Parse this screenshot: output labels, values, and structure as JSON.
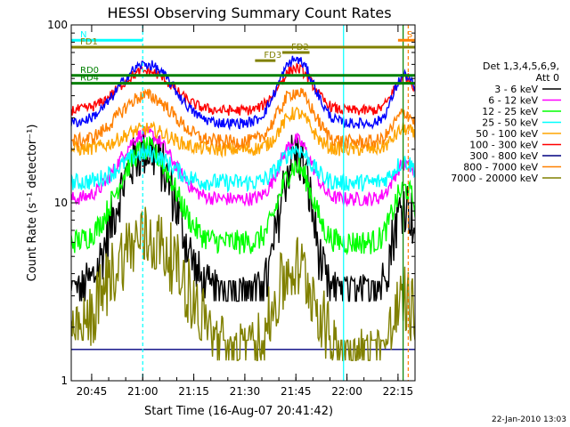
{
  "chart_data": {
    "type": "line",
    "title": "HESSI Observing Summary Count Rates",
    "xlabel": "Start Time (16-Aug-07 20:41:42)",
    "ylabel": "Count Rate (s⁻¹ detector⁻¹)",
    "yscale": "log",
    "ylim": [
      1,
      100
    ],
    "xlim_minutes": [
      -2,
      99
    ],
    "x_ticks": [
      {
        "m": 4,
        "label": "20:45"
      },
      {
        "m": 19,
        "label": "21:00"
      },
      {
        "m": 34,
        "label": "21:15"
      },
      {
        "m": 49,
        "label": "21:30"
      },
      {
        "m": 64,
        "label": "21:45"
      },
      {
        "m": 79,
        "label": "22:00"
      },
      {
        "m": 94,
        "label": "22:15"
      }
    ],
    "y_tick_labels": [
      {
        "v": 1,
        "label": "1"
      },
      {
        "v": 10,
        "label": "10"
      },
      {
        "v": 100,
        "label": "100"
      }
    ],
    "legend_header": [
      "Det 1,3,4,5,6,9,",
      "Att 0"
    ],
    "legend_position": "right",
    "series": [
      {
        "name": "3 - 6 keV",
        "color": "#000000",
        "baseline": 2.8,
        "peaks": [
          {
            "c": 20,
            "w": 6.5,
            "a": 17
          },
          {
            "c": 64,
            "w": 3.5,
            "a": 16
          },
          {
            "c": 96,
            "w": 3.0,
            "a": 7
          }
        ],
        "noise": 0.16
      },
      {
        "name": "6 - 12 keV",
        "color": "#ff00ff",
        "baseline": 10.5,
        "peaks": [
          {
            "c": 20,
            "w": 6.5,
            "a": 14
          },
          {
            "c": 64,
            "w": 4.0,
            "a": 12
          },
          {
            "c": 96,
            "w": 3.0,
            "a": 6
          }
        ],
        "noise": 0.04
      },
      {
        "name": "12 - 25 keV",
        "color": "#00ff00",
        "baseline": 6.0,
        "peaks": [
          {
            "c": 20,
            "w": 6.5,
            "a": 14
          },
          {
            "c": 64,
            "w": 4.0,
            "a": 10
          },
          {
            "c": 96,
            "w": 3.0,
            "a": 6
          }
        ],
        "noise": 0.07
      },
      {
        "name": "25 - 50 keV",
        "color": "#00ffff",
        "baseline": 13.0,
        "peaks": [
          {
            "c": 20,
            "w": 6.5,
            "a": 6
          },
          {
            "c": 64,
            "w": 4.0,
            "a": 7
          },
          {
            "c": 96,
            "w": 3.0,
            "a": 4
          }
        ],
        "noise": 0.05
      },
      {
        "name": "50 - 100 keV",
        "color": "#ffa500",
        "baseline": 20.0,
        "peaks": [
          {
            "c": 20,
            "w": 6.5,
            "a": 6
          },
          {
            "c": 64,
            "w": 4.0,
            "a": 12
          },
          {
            "c": 96,
            "w": 3.0,
            "a": 6
          }
        ],
        "noise": 0.04
      },
      {
        "name": "100 - 300 keV",
        "color": "#ff0000",
        "baseline": 33.0,
        "peaks": [
          {
            "c": 20,
            "w": 7.0,
            "a": 22
          },
          {
            "c": 64,
            "w": 4.5,
            "a": 24
          },
          {
            "c": 96,
            "w": 3.0,
            "a": 18
          }
        ],
        "noise": 0.03
      },
      {
        "name": "300 - 800 keV",
        "color": "#000080",
        "baseline": 1.5,
        "peaks": [],
        "noise": 0.0
      },
      {
        "name": "800 - 7000 keV",
        "color": "#ff8000",
        "baseline": 22.0,
        "peaks": [
          {
            "c": 20,
            "w": 7.0,
            "a": 18
          },
          {
            "c": 64,
            "w": 4.5,
            "a": 20
          },
          {
            "c": 96,
            "w": 3.0,
            "a": 10
          }
        ],
        "noise": 0.04
      },
      {
        "name": "7000 - 20000 keV",
        "color": "#808000",
        "baseline": 1.3,
        "peaks": [
          {
            "c": 20,
            "w": 9.0,
            "a": 5
          },
          {
            "c": 64,
            "w": 5.0,
            "a": 3
          },
          {
            "c": 96,
            "w": 3.0,
            "a": 1.5
          }
        ],
        "noise": 0.2
      }
    ],
    "blue_series": {
      "color": "#0000ff",
      "baseline": 28.0,
      "peaks": [
        {
          "c": 20,
          "w": 7.0,
          "a": 32
        },
        {
          "c": 64,
          "w": 4.5,
          "a": 36
        },
        {
          "c": 96,
          "w": 3.0,
          "a": 24
        }
      ],
      "noise": 0.03
    },
    "flags": [
      {
        "label": "N",
        "color": "#00ffff",
        "x0": -2,
        "x1": 19,
        "y": 82
      },
      {
        "label": "S",
        "color": "#ff8000",
        "x0": 94,
        "x1": 99,
        "y": 82
      },
      {
        "label": "FD1",
        "color": "#808000",
        "x0": -2,
        "x1": 99,
        "y": 75
      },
      {
        "label": "FD2",
        "color": "#808000",
        "x0": 60,
        "x1": 68,
        "y": 70
      },
      {
        "label": "FD3",
        "color": "#808000",
        "x0": 52,
        "x1": 58,
        "y": 63
      },
      {
        "label": "RD0",
        "color": "#008000",
        "x0": -2,
        "x1": 99,
        "y": 52
      },
      {
        "label": "RD4",
        "color": "#008000",
        "x0": -2,
        "x1": 99,
        "y": 47
      }
    ],
    "vertical_markers": [
      {
        "m": 19,
        "color": "#00ffff",
        "dashed": true
      },
      {
        "m": 78,
        "color": "#00ffff",
        "dashed": false
      },
      {
        "m": 97,
        "color": "#ff8000",
        "dashed": true
      },
      {
        "m": 95.5,
        "color": "#008000",
        "dashed": false
      }
    ],
    "footer_date": "22-Jan-2010 13:03"
  }
}
